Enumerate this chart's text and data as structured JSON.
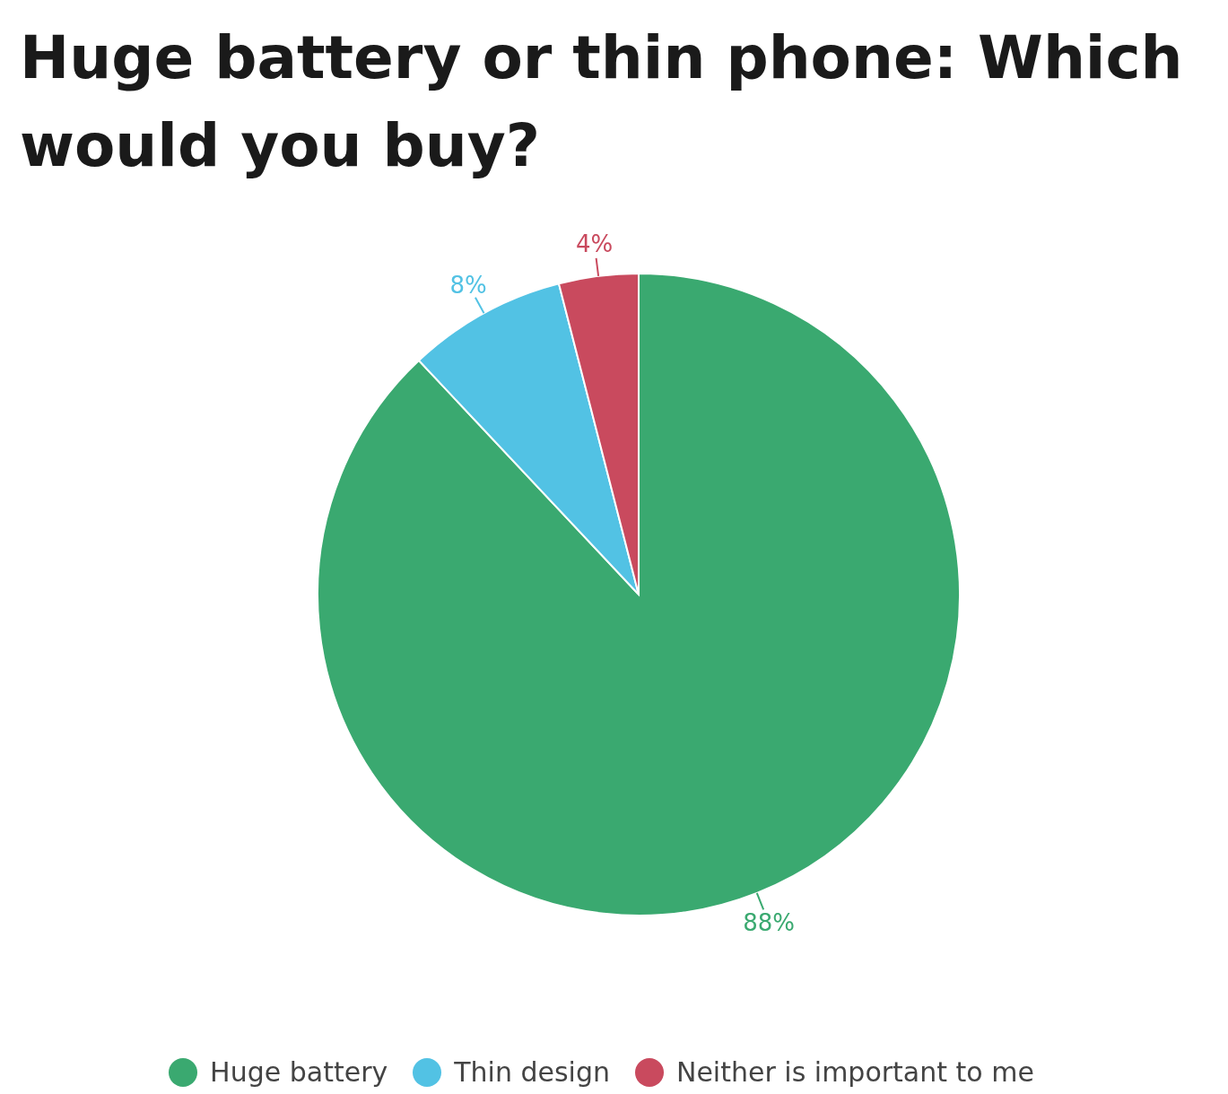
{
  "chart_data": {
    "type": "pie",
    "title": "Huge battery or thin phone: Which would you buy?",
    "categories": [
      "Huge battery",
      "Thin design",
      "Neither is important to me"
    ],
    "values": [
      88,
      8,
      4
    ],
    "value_labels": [
      "88%",
      "8%",
      "4%"
    ],
    "colors": [
      "#3aa970",
      "#52c2e4",
      "#c94a5e"
    ],
    "legend": "bottom"
  }
}
